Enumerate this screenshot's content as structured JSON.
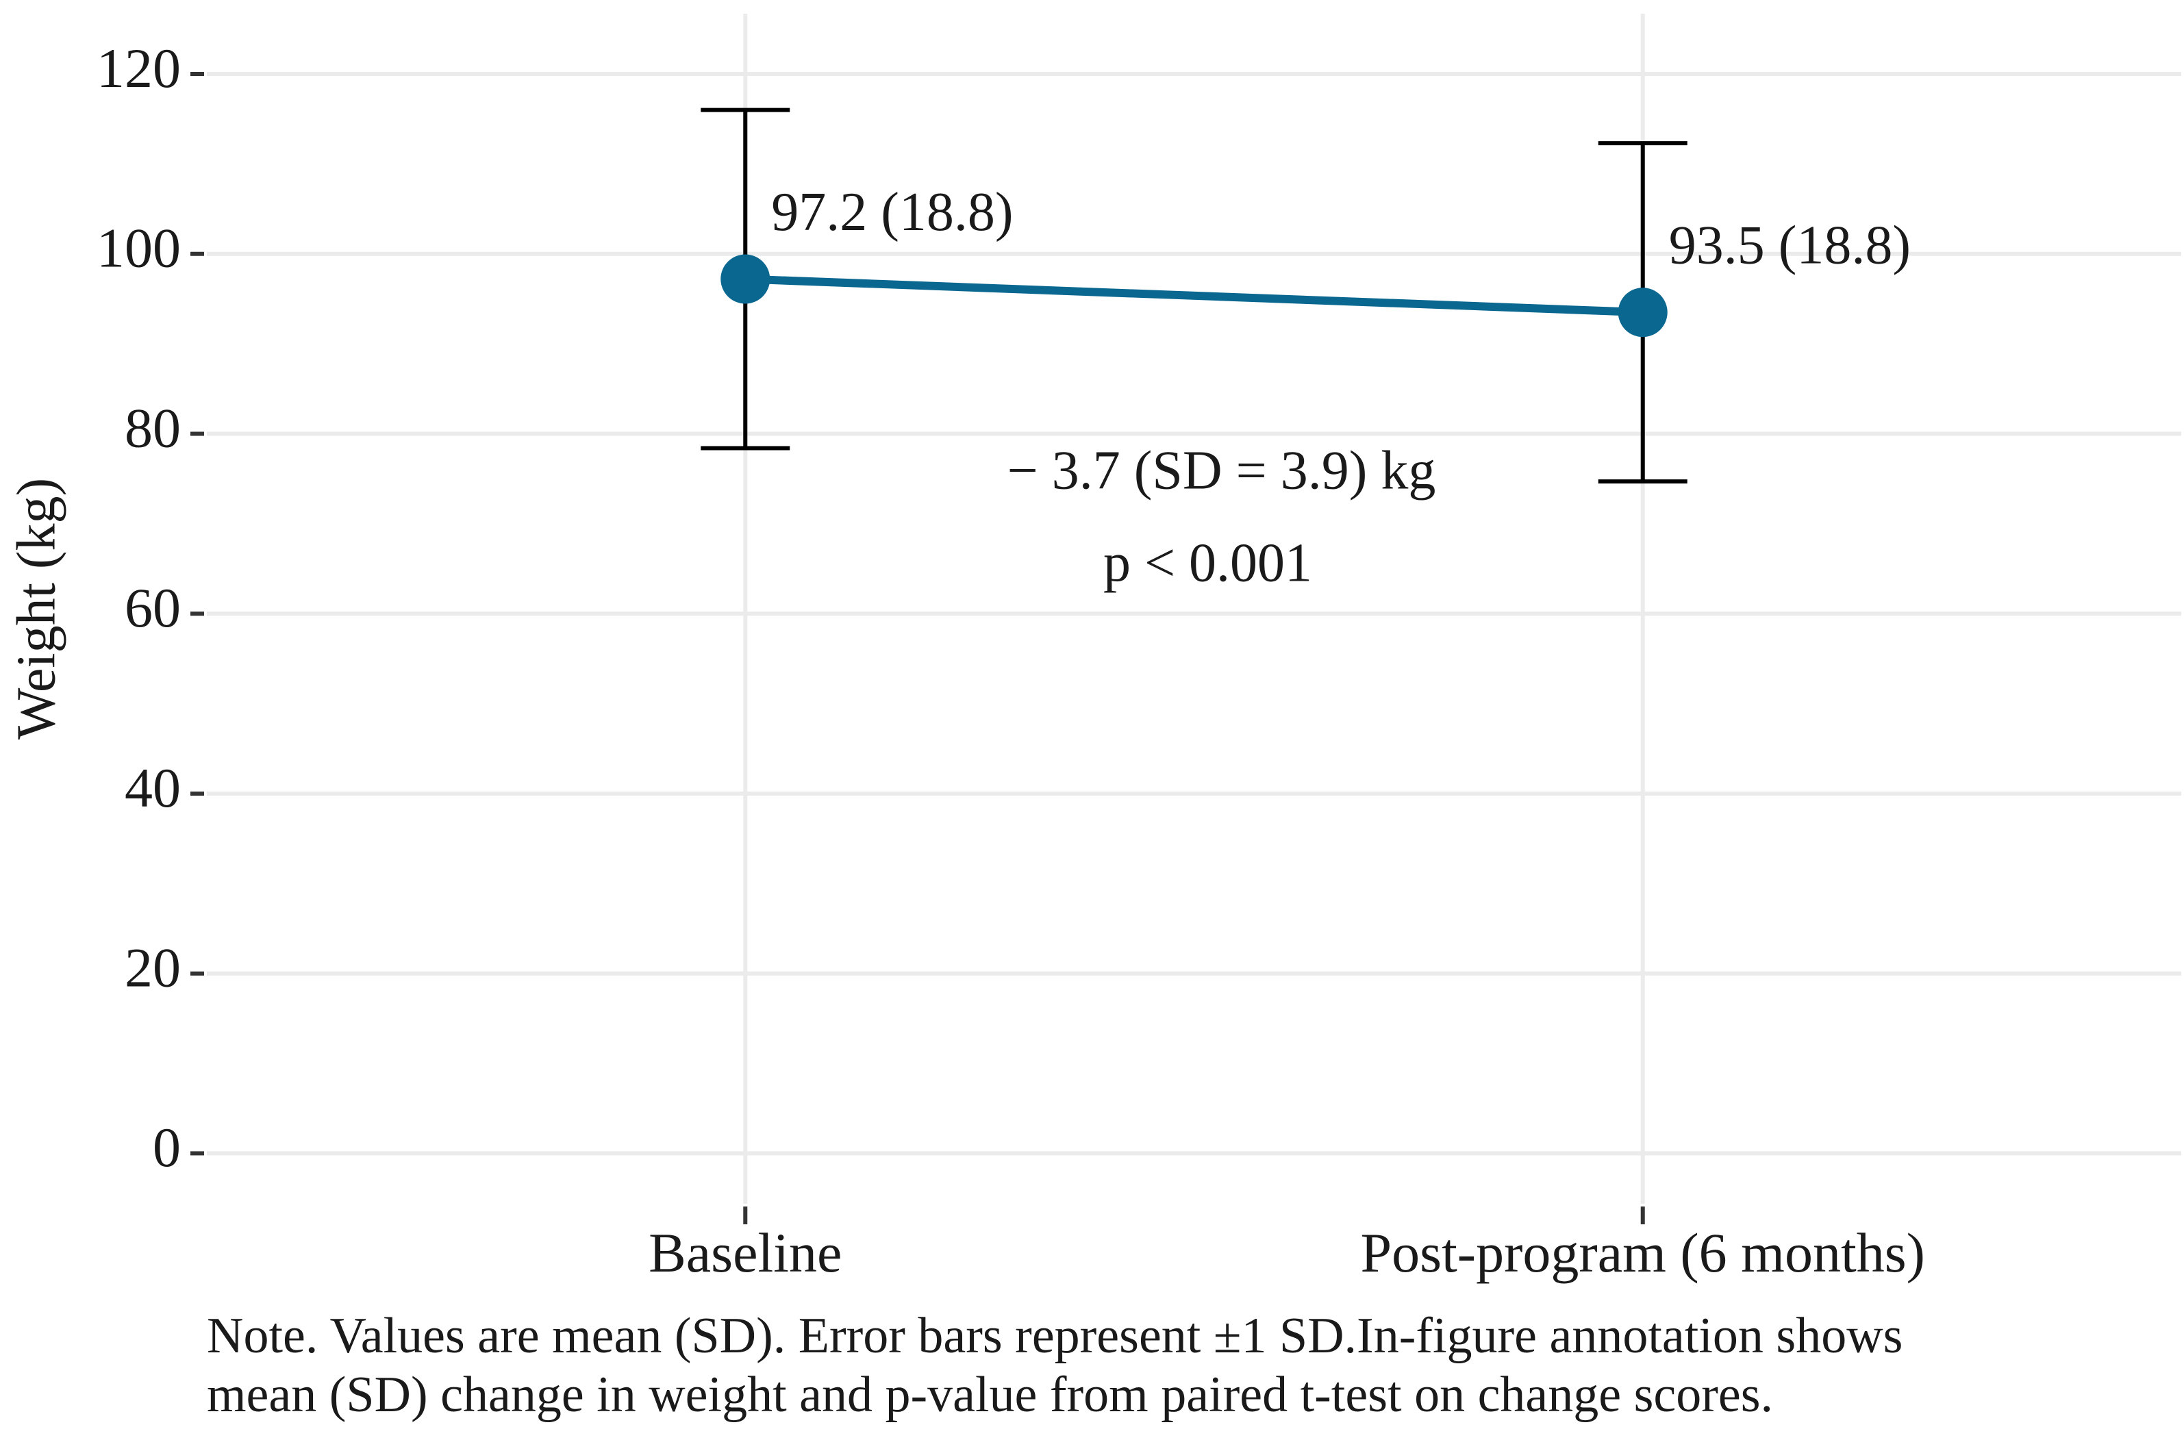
{
  "chart_data": {
    "type": "line",
    "y_label": "Weight (kg)",
    "categories": [
      "Baseline",
      "Post-program (6 months)"
    ],
    "series": [
      {
        "color": "#0a6790",
        "values": [
          97.2,
          93.5
        ],
        "errors": [
          18.8,
          18.8
        ],
        "value_labels": [
          "97.2 (18.8)",
          "93.5 (18.8)"
        ]
      }
    ],
    "ylim": [
      -5.6,
      126.7
    ],
    "yticks": [
      0,
      20,
      40,
      60,
      80,
      100,
      120
    ],
    "grid": true,
    "annotations": [
      "− 3.7 (SD = 3.9) kg",
      "p < 0.001"
    ],
    "caption": [
      "Note. Values are mean (SD). Error bars represent ±1 SD.In-figure annotation shows",
      "mean (SD) change in weight and p-value from paired t-test on change scores."
    ]
  }
}
